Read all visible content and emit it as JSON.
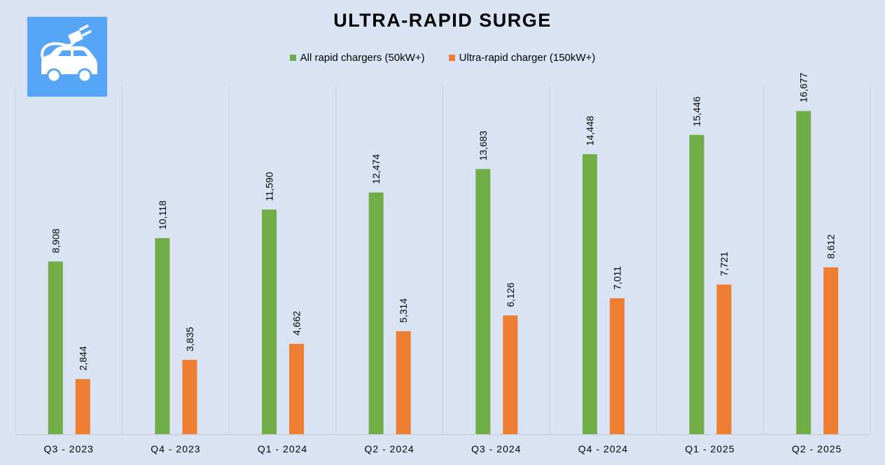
{
  "colors": {
    "background": "#dae3f3",
    "series_all": "#70ad47",
    "series_ultra": "#ed7d31",
    "logo_bg": "#56a5f7",
    "grid": "#c8cfda"
  },
  "logo": {
    "icon": "ev-car-plug-icon"
  },
  "chart_data": {
    "type": "bar",
    "title": "ULTRA-RAPID SURGE",
    "categories": [
      "Q3 - 2023",
      "Q4 - 2023",
      "Q1 - 2024",
      "Q2 - 2024",
      "Q3 - 2024",
      "Q4 - 2024",
      "Q1 - 2025",
      "Q2 - 2025"
    ],
    "series": [
      {
        "name": "All rapid chargers (50kW+)",
        "values": [
          8908,
          10118,
          11590,
          12474,
          13683,
          14448,
          15446,
          16677
        ],
        "labels": [
          "8,908",
          "10,118",
          "11,590",
          "12,474",
          "13,683",
          "14,448",
          "15,446",
          "16,677"
        ]
      },
      {
        "name": "Ultra-rapid charger (150kW+)",
        "values": [
          2844,
          3835,
          4662,
          5314,
          6126,
          7011,
          7721,
          8612
        ],
        "labels": [
          "2,844",
          "3,835",
          "4,662",
          "5,314",
          "6,126",
          "7,011",
          "7,721",
          "8,612"
        ]
      }
    ],
    "xlabel": "",
    "ylabel": "",
    "ylim": [
      0,
      18000
    ],
    "grid": false,
    "legend": "top-center"
  }
}
